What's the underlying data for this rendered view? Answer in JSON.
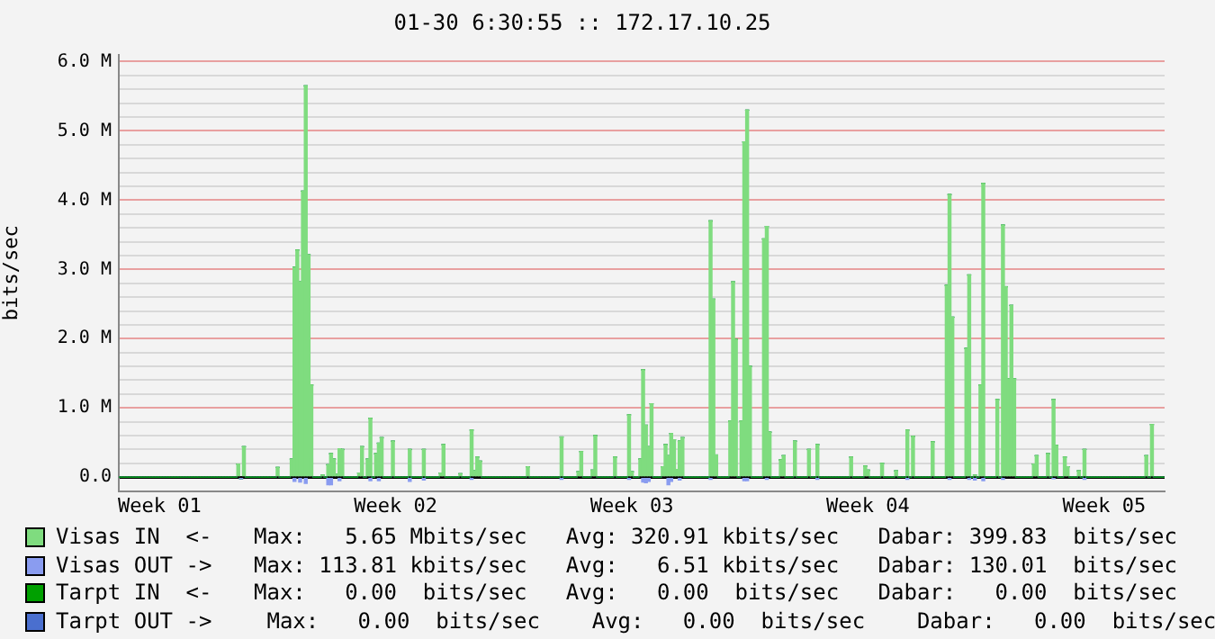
{
  "chart_data": {
    "type": "bar",
    "title": "01-30 6:30:55 :: 172.17.10.25",
    "ylabel": "bits/sec",
    "categories": [
      null,
      null,
      null,
      null,
      null,
      null,
      null,
      null,
      null,
      null,
      null,
      null,
      null,
      null,
      "Week 01",
      null,
      null,
      null,
      null,
      null,
      null,
      null,
      null,
      null,
      null,
      null,
      null,
      null,
      null,
      null,
      null,
      null,
      null,
      null,
      null,
      null,
      null,
      null,
      null,
      null,
      null,
      null,
      null,
      null,
      null,
      null,
      null,
      null,
      null,
      null,
      null,
      null,
      null,
      null,
      null,
      null,
      null,
      null,
      null,
      null,
      null,
      null,
      null,
      null,
      null,
      null,
      null,
      null,
      null,
      null,
      null,
      null,
      null,
      null,
      null,
      null,
      null,
      null,
      null,
      null,
      null,
      null,
      null,
      null,
      null,
      null,
      null,
      null,
      null,
      null,
      null,
      null,
      null,
      null,
      null,
      null,
      null,
      null,
      "Week 02",
      null,
      null,
      null,
      null,
      null,
      null,
      null,
      null,
      null,
      null,
      null,
      null,
      null,
      null,
      null,
      null,
      null,
      null,
      null,
      null,
      null,
      null,
      null,
      null,
      null,
      null,
      null,
      null,
      null,
      null,
      null,
      null,
      null,
      null,
      null,
      null,
      null,
      null,
      null,
      null,
      null,
      null,
      null,
      null,
      null,
      null,
      null,
      null,
      null,
      null,
      null,
      null,
      null,
      null,
      null,
      null,
      null,
      null,
      null,
      null,
      null,
      null,
      null,
      null,
      null,
      null,
      null,
      null,
      null,
      null,
      null,
      null,
      null,
      null,
      null,
      null,
      null,
      null,
      null,
      null,
      null,
      null,
      null,
      "Week 03",
      null,
      null,
      null,
      null,
      null,
      null,
      null,
      null,
      null,
      null,
      null,
      null,
      null,
      null,
      null,
      null,
      null,
      null,
      null,
      null,
      null,
      null,
      null,
      null,
      null,
      null,
      null,
      null,
      null,
      null,
      null,
      null,
      null,
      null,
      null,
      null,
      null,
      null,
      null,
      null,
      null,
      null,
      null,
      null,
      null,
      null,
      null,
      null,
      null,
      null,
      null,
      null,
      null,
      null,
      null,
      null,
      null,
      null,
      null,
      null,
      null,
      null,
      null,
      null,
      null,
      null,
      null,
      null,
      null,
      null,
      null,
      null,
      null,
      null,
      null,
      null,
      null,
      null,
      null,
      null,
      null,
      null,
      null,
      "Week 04",
      null,
      null,
      null,
      null,
      null,
      null,
      null,
      null,
      null,
      null,
      null,
      null,
      null,
      null,
      null,
      null,
      null,
      null,
      null,
      null,
      null,
      null,
      null,
      null,
      null,
      null,
      null,
      null,
      null,
      null,
      null,
      null,
      null,
      null,
      null,
      null,
      null,
      null,
      null,
      null,
      null,
      null,
      null,
      null,
      null,
      null,
      null,
      null,
      null,
      null,
      null,
      null,
      null,
      null,
      null,
      null,
      null,
      null,
      null,
      null,
      null,
      null,
      null,
      null,
      null,
      null,
      null,
      null,
      null,
      null,
      null,
      null,
      null,
      null,
      null,
      null,
      null,
      null,
      null,
      null,
      null,
      null,
      null,
      "Week 05",
      null,
      null,
      null,
      null,
      null,
      null,
      null,
      null,
      null,
      null,
      null,
      null,
      null,
      null,
      null,
      null,
      null,
      null,
      null,
      null,
      null
    ],
    "ylim": [
      -200000,
      6100000
    ],
    "yticks": [
      {
        "value": 0,
        "label": "0.0"
      },
      {
        "value": 1000000,
        "label": "1.0 M"
      },
      {
        "value": 2000000,
        "label": "2.0 M"
      },
      {
        "value": 3000000,
        "label": "3.0 M"
      },
      {
        "value": 4000000,
        "label": "4.0 M"
      },
      {
        "value": 5000000,
        "label": "5.0 M"
      },
      {
        "value": 6000000,
        "label": "6.0 M"
      },
      {
        "value": 200000,
        "label": null
      },
      {
        "value": 400000,
        "label": null
      },
      {
        "value": 600000,
        "label": null
      },
      {
        "value": 800000,
        "label": null
      },
      {
        "value": 1200000,
        "label": null
      },
      {
        "value": 1400000,
        "label": null
      },
      {
        "value": 1600000,
        "label": null
      },
      {
        "value": 1800000,
        "label": null
      },
      {
        "value": 2200000,
        "label": null
      },
      {
        "value": 2400000,
        "label": null
      },
      {
        "value": 2600000,
        "label": null
      },
      {
        "value": 2800000,
        "label": null
      },
      {
        "value": 3200000,
        "label": null
      },
      {
        "value": 3400000,
        "label": null
      },
      {
        "value": 3600000,
        "label": null
      },
      {
        "value": 3800000,
        "label": null
      },
      {
        "value": 4200000,
        "label": null
      },
      {
        "value": 4400000,
        "label": null
      },
      {
        "value": 4600000,
        "label": null
      },
      {
        "value": 4800000,
        "label": null
      },
      {
        "value": 5200000,
        "label": null
      },
      {
        "value": 5400000,
        "label": null
      },
      {
        "value": 5600000,
        "label": null
      },
      {
        "value": 5800000,
        "label": null
      }
    ],
    "grid": "y",
    "legend": "bottom",
    "stacked": true,
    "series": [
      {
        "name": "Visas IN  <-",
        "color": "#7fdc7f",
        "values": [
          null,
          null,
          null,
          null,
          null,
          null,
          null,
          null,
          null,
          null,
          null,
          null,
          null,
          null,
          null,
          null,
          null,
          null,
          null,
          null,
          null,
          null,
          null,
          null,
          null,
          null,
          null,
          null,
          null,
          null,
          null,
          null,
          null,
          null,
          null,
          null,
          null,
          null,
          null,
          null,
          null,
          null,
          190000,
          null,
          440000,
          null,
          null,
          null,
          null,
          null,
          null,
          null,
          null,
          null,
          null,
          null,
          140000,
          null,
          null,
          null,
          null,
          260000,
          3030000,
          3280000,
          2820000,
          4130000,
          5650000,
          3210000,
          1330000,
          null,
          null,
          null,
          30000,
          null,
          180000,
          340000,
          260000,
          40000,
          410000,
          400000,
          null,
          null,
          null,
          null,
          null,
          60000,
          440000,
          null,
          260000,
          850000,
          null,
          340000,
          490000,
          570000,
          null,
          null,
          null,
          520000,
          null,
          null,
          null,
          null,
          null,
          400000,
          null,
          null,
          null,
          null,
          400000,
          null,
          null,
          null,
          null,
          null,
          60000,
          470000,
          null,
          null,
          null,
          null,
          null,
          50000,
          null,
          null,
          null,
          680000,
          90000,
          290000,
          230000,
          null,
          null,
          null,
          null,
          null,
          null,
          null,
          null,
          null,
          null,
          null,
          null,
          null,
          null,
          null,
          null,
          150000,
          null,
          null,
          null,
          null,
          null,
          null,
          null,
          null,
          null,
          null,
          null,
          580000,
          null,
          null,
          null,
          null,
          null,
          80000,
          370000,
          null,
          null,
          null,
          100000,
          600000,
          null,
          null,
          null,
          null,
          null,
          null,
          290000,
          null,
          null,
          null,
          null,
          900000,
          80000,
          null,
          null,
          260000,
          1550000,
          750000,
          440000,
          1060000,
          null,
          null,
          null,
          150000,
          470000,
          310000,
          630000,
          540000,
          110000,
          520000,
          570000,
          null,
          null,
          null,
          null,
          null,
          null,
          null,
          null,
          null,
          3700000,
          2570000,
          320000,
          null,
          null,
          null,
          null,
          810000,
          2820000,
          1990000,
          null,
          810000,
          4840000,
          5300000,
          1600000,
          null,
          null,
          null,
          null,
          3440000,
          3620000,
          650000,
          null,
          null,
          null,
          250000,
          310000,
          null,
          null,
          null,
          520000,
          null,
          null,
          null,
          null,
          400000,
          null,
          null,
          470000,
          null,
          null,
          null,
          null,
          null,
          null,
          null,
          null,
          null,
          null,
          null,
          290000,
          null,
          null,
          null,
          null,
          160000,
          100000,
          null,
          null,
          null,
          null,
          200000,
          null,
          null,
          null,
          null,
          90000,
          null,
          null,
          null,
          680000,
          null,
          590000,
          null,
          null,
          null,
          null,
          null,
          null,
          510000,
          null,
          null,
          null,
          null,
          2770000,
          4080000,
          2310000,
          null,
          null,
          null,
          null,
          1860000,
          2920000,
          null,
          30000,
          null,
          1330000,
          4240000,
          null,
          null,
          null,
          null,
          1120000,
          null,
          3640000,
          2750000,
          1420000,
          2480000,
          1420000,
          null,
          null,
          null,
          null,
          null,
          null,
          190000,
          310000,
          null,
          null,
          null,
          340000,
          null,
          1120000,
          460000,
          null,
          null,
          290000,
          150000,
          null,
          null,
          null,
          90000,
          null,
          400000,
          null,
          null,
          null,
          null,
          null,
          null,
          null,
          null,
          null,
          null,
          null,
          null,
          null,
          null,
          null,
          null,
          null,
          null,
          null,
          null,
          null,
          310000,
          null,
          760000,
          null,
          null,
          null,
          null
        ]
      },
      {
        "name": "Visas OUT ->",
        "color": "#8a9cf0",
        "values": [
          null,
          null,
          null,
          null,
          null,
          null,
          null,
          null,
          null,
          null,
          null,
          null,
          null,
          null,
          null,
          null,
          null,
          null,
          null,
          null,
          null,
          null,
          null,
          null,
          null,
          null,
          null,
          null,
          null,
          null,
          null,
          null,
          null,
          null,
          null,
          null,
          null,
          null,
          null,
          null,
          null,
          null,
          null,
          -20000,
          null,
          null,
          null,
          null,
          null,
          null,
          null,
          null,
          null,
          null,
          null,
          null,
          null,
          null,
          null,
          null,
          null,
          null,
          -60000,
          null,
          -70000,
          null,
          -90000,
          null,
          null,
          null,
          null,
          null,
          null,
          null,
          -110000,
          -110000,
          null,
          null,
          -50000,
          null,
          null,
          null,
          null,
          null,
          null,
          null,
          null,
          null,
          null,
          -50000,
          null,
          null,
          -50000,
          null,
          null,
          null,
          null,
          null,
          null,
          null,
          null,
          null,
          null,
          -60000,
          null,
          null,
          null,
          null,
          -40000,
          null,
          null,
          null,
          null,
          null,
          null,
          null,
          null,
          null,
          null,
          null,
          null,
          null,
          null,
          null,
          null,
          -30000,
          null,
          null,
          null,
          null,
          null,
          null,
          null,
          null,
          null,
          null,
          null,
          null,
          null,
          null,
          null,
          null,
          null,
          null,
          null,
          null,
          null,
          null,
          null,
          null,
          null,
          null,
          null,
          null,
          null,
          null,
          null,
          -30000,
          null,
          null,
          null,
          null,
          null,
          null,
          null,
          null,
          null,
          null,
          null,
          null,
          null,
          null,
          null,
          null,
          null,
          null,
          null,
          null,
          null,
          null,
          null,
          -30000,
          null,
          null,
          null,
          null,
          -70000,
          -80000,
          -60000,
          null,
          null,
          null,
          null,
          null,
          null,
          -110000,
          -60000,
          null,
          null,
          -40000,
          null,
          null,
          null,
          null,
          null,
          null,
          null,
          null,
          null,
          null,
          -30000,
          null,
          null,
          null,
          null,
          null,
          null,
          null,
          null,
          null,
          null,
          null,
          -50000,
          -50000,
          null,
          null,
          null,
          null,
          null,
          null,
          -30000,
          null,
          null,
          null,
          null,
          null,
          null,
          null,
          null,
          null,
          null,
          null,
          null,
          null,
          null,
          null,
          null,
          null,
          -30000,
          null,
          null,
          null,
          null,
          null,
          null,
          null,
          null,
          null,
          null,
          null,
          null,
          null,
          null,
          null,
          null,
          null,
          null,
          null,
          null,
          null,
          null,
          null,
          null,
          null,
          null,
          null,
          null,
          null,
          null,
          null,
          -30000,
          null,
          null,
          null,
          null,
          null,
          null,
          null,
          null,
          null,
          null,
          null,
          null,
          null,
          null,
          -30000,
          null,
          null,
          null,
          null,
          null,
          null,
          -30000,
          null,
          -40000,
          null,
          null,
          -50000,
          null,
          null,
          null,
          null,
          null,
          null,
          -30000,
          null,
          null,
          null,
          null,
          null,
          null,
          null,
          null,
          null,
          null,
          null,
          null,
          null,
          null,
          null,
          null,
          null,
          -20000,
          null,
          null,
          null,
          null,
          null,
          null,
          null,
          null,
          null,
          null,
          -30000,
          null,
          null,
          null,
          null,
          null,
          null,
          null,
          null,
          null,
          null,
          null,
          null,
          null,
          null,
          null,
          null,
          null,
          null,
          null,
          null,
          null,
          null,
          null,
          null,
          null,
          null,
          null,
          null
        ]
      },
      {
        "name": "Tarpt IN  <-",
        "color": "#00a000",
        "values": [
          0,
          0,
          0,
          0,
          0,
          0,
          0,
          0,
          0,
          0,
          0,
          0,
          0,
          0,
          0,
          0,
          0,
          0,
          0,
          0,
          0,
          0,
          0,
          0,
          0,
          0,
          0,
          0,
          0,
          0,
          0,
          0,
          0,
          0,
          0,
          0,
          0,
          0,
          0,
          0,
          0,
          0,
          0,
          0,
          0,
          0,
          0,
          0,
          0,
          0,
          0,
          0,
          0,
          0,
          0,
          0,
          0,
          0,
          0,
          0,
          0,
          0,
          0,
          0,
          0,
          0,
          0,
          0,
          0,
          0,
          0,
          0,
          0,
          0,
          0,
          0,
          0,
          0,
          0,
          0,
          0,
          0,
          0,
          0,
          0,
          0,
          0,
          0,
          0,
          0,
          0,
          0,
          0,
          0,
          0,
          0,
          0,
          0,
          0,
          0,
          0,
          0,
          0,
          0,
          0,
          0,
          0,
          0,
          0,
          0,
          0,
          0,
          0,
          0,
          0,
          0,
          0,
          0,
          0,
          0,
          0,
          0,
          0,
          0,
          0,
          0,
          0,
          0,
          0,
          0,
          0,
          0,
          0,
          0,
          0,
          0,
          0,
          0,
          0,
          0,
          0,
          0,
          0,
          0,
          0,
          0,
          0,
          0,
          0,
          0,
          0,
          0,
          0,
          0,
          0,
          0,
          0,
          0,
          0,
          0,
          0,
          0,
          0,
          0,
          0,
          0,
          0,
          0,
          0,
          0,
          0,
          0,
          0,
          0,
          0,
          0,
          0,
          0,
          0,
          0,
          0,
          0,
          0,
          0,
          0,
          0,
          0,
          0,
          0,
          0,
          0,
          0,
          0,
          0,
          0,
          0,
          0,
          0,
          0,
          0,
          0,
          0,
          0,
          0,
          0,
          0,
          0,
          0,
          0,
          0,
          0,
          0,
          0,
          0,
          0,
          0,
          0,
          0,
          0,
          0,
          0,
          0,
          0,
          0,
          0,
          0,
          0,
          0,
          0,
          0,
          0,
          0,
          0,
          0,
          0,
          0,
          0,
          0,
          0,
          0,
          0,
          0,
          0,
          0,
          0,
          0,
          0,
          0,
          0,
          0,
          0,
          0,
          0,
          0,
          0,
          0,
          0,
          0,
          0,
          0,
          0,
          0,
          0,
          0,
          0,
          0,
          0,
          0,
          0,
          0,
          0,
          0,
          0,
          0,
          0,
          0,
          0,
          0,
          0,
          0,
          0,
          0,
          0,
          0,
          0,
          0,
          0,
          0,
          0,
          0,
          0,
          0,
          0,
          0,
          0,
          0,
          0,
          0,
          0,
          0,
          0,
          0,
          0,
          0,
          0,
          0,
          0,
          0,
          0,
          0,
          0,
          0,
          0,
          0,
          0,
          0,
          0,
          0,
          0,
          0,
          0,
          0,
          0,
          0,
          0,
          0,
          0,
          0,
          0,
          0,
          0,
          0,
          0,
          0,
          0,
          0,
          0,
          0,
          0,
          0,
          0,
          0,
          0,
          0,
          0,
          0,
          0,
          0,
          0,
          0,
          0,
          0,
          0,
          0,
          0,
          0,
          0,
          0,
          0,
          0,
          0,
          0,
          0,
          0,
          0,
          0,
          0,
          0,
          0,
          0,
          0,
          0
        ]
      },
      {
        "name": "Tarpt OUT ->",
        "color": "#4a6fcf",
        "values": [
          0,
          0,
          0,
          0,
          0,
          0,
          0,
          0,
          0,
          0,
          0,
          0,
          0,
          0,
          0,
          0,
          0,
          0,
          0,
          0,
          0,
          0,
          0,
          0,
          0,
          0,
          0,
          0,
          0,
          0,
          0,
          0,
          0,
          0,
          0,
          0,
          0,
          0,
          0,
          0,
          0,
          0,
          0,
          0,
          0,
          0,
          0,
          0,
          0,
          0,
          0,
          0,
          0,
          0,
          0,
          0,
          0,
          0,
          0,
          0,
          0,
          0,
          0,
          0,
          0,
          0,
          0,
          0,
          0,
          0,
          0,
          0,
          0,
          0,
          0,
          0,
          0,
          0,
          0,
          0,
          0,
          0,
          0,
          0,
          0,
          0,
          0,
          0,
          0,
          0,
          0,
          0,
          0,
          0,
          0,
          0,
          0,
          0,
          0,
          0,
          0,
          0,
          0,
          0,
          0,
          0,
          0,
          0,
          0,
          0,
          0,
          0,
          0,
          0,
          0,
          0,
          0,
          0,
          0,
          0,
          0,
          0,
          0,
          0,
          0,
          0,
          0,
          0,
          0,
          0,
          0,
          0,
          0,
          0,
          0,
          0,
          0,
          0,
          0,
          0,
          0,
          0,
          0,
          0,
          0,
          0,
          0,
          0,
          0,
          0,
          0,
          0,
          0,
          0,
          0,
          0,
          0,
          0,
          0,
          0,
          0,
          0,
          0,
          0,
          0,
          0,
          0,
          0,
          0,
          0,
          0,
          0,
          0,
          0,
          0,
          0,
          0,
          0,
          0,
          0,
          0,
          0,
          0,
          0,
          0,
          0,
          0,
          0,
          0,
          0,
          0,
          0,
          0,
          0,
          0,
          0,
          0,
          0,
          0,
          0,
          0,
          0,
          0,
          0,
          0,
          0,
          0,
          0,
          0,
          0,
          0,
          0,
          0,
          0,
          0,
          0,
          0,
          0,
          0,
          0,
          0,
          0,
          0,
          0,
          0,
          0,
          0,
          0,
          0,
          0,
          0,
          0,
          0,
          0,
          0,
          0,
          0,
          0,
          0,
          0,
          0,
          0,
          0,
          0,
          0,
          0,
          0,
          0,
          0,
          0,
          0,
          0,
          0,
          0,
          0,
          0,
          0,
          0,
          0,
          0,
          0,
          0,
          0,
          0,
          0,
          0,
          0,
          0,
          0,
          0,
          0,
          0,
          0,
          0,
          0,
          0,
          0,
          0,
          0,
          0,
          0,
          0,
          0,
          0,
          0,
          0,
          0,
          0,
          0,
          0,
          0,
          0,
          0,
          0,
          0,
          0,
          0,
          0,
          0,
          0,
          0,
          0,
          0,
          0,
          0,
          0,
          0,
          0,
          0,
          0,
          0,
          0,
          0,
          0,
          0,
          0,
          0,
          0,
          0,
          0,
          0,
          0,
          0,
          0,
          0,
          0,
          0,
          0,
          0,
          0,
          0,
          0,
          0,
          0,
          0,
          0,
          0,
          0,
          0,
          0,
          0,
          0,
          0,
          0,
          0,
          0,
          0,
          0,
          0,
          0,
          0,
          0,
          0,
          0,
          0,
          0,
          0,
          0,
          0,
          0,
          0,
          0,
          0,
          0,
          0,
          0,
          0,
          0,
          0,
          0,
          0,
          0
        ]
      }
    ],
    "annotations": [
      "Max:   5.65 Mbits/sec   Avg: 320.91 kbits/sec   Dabar: 399.83  bits/sec",
      "Max: 113.81 kbits/sec   Avg:   6.51 kbits/sec   Dabar: 130.01  bits/sec",
      "Max:   0.00  bits/sec   Avg:   0.00  bits/sec   Dabar:   0.00  bits/sec",
      " Max:   0.00  bits/sec    Avg:   0.00  bits/sec    Dabar:   0.00  bits/sec"
    ]
  }
}
